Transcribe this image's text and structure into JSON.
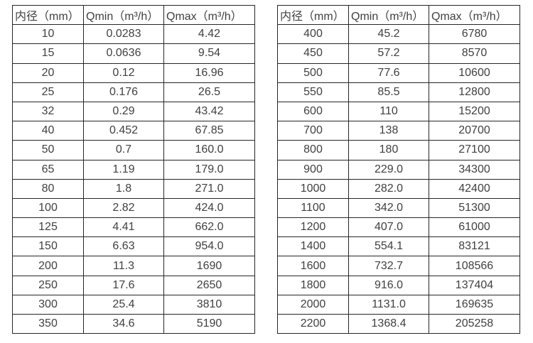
{
  "page": {
    "background_color": "#ffffff",
    "border_color": "#262626",
    "text_color": "#404040"
  },
  "tables": [
    {
      "headers": [
        "内径（mm）",
        "Qmin（m³/h）",
        "Qmax（m³/h）"
      ],
      "rows": [
        [
          "10",
          "0.0283",
          "4.42"
        ],
        [
          "15",
          "0.0636",
          "9.54"
        ],
        [
          "20",
          "0.12",
          "16.96"
        ],
        [
          "25",
          "0.176",
          "26.5"
        ],
        [
          "32",
          "0.29",
          "43.42"
        ],
        [
          "40",
          "0.452",
          "67.85"
        ],
        [
          "50",
          "0.7",
          "160.0"
        ],
        [
          "65",
          "1.19",
          "179.0"
        ],
        [
          "80",
          "1.8",
          "271.0"
        ],
        [
          "100",
          "2.82",
          "424.0"
        ],
        [
          "125",
          "4.41",
          "662.0"
        ],
        [
          "150",
          "6.63",
          "954.0"
        ],
        [
          "200",
          "11.3",
          "1690"
        ],
        [
          "250",
          "17.6",
          "2650"
        ],
        [
          "300",
          "25.4",
          "3810"
        ],
        [
          "350",
          "34.6",
          "5190"
        ]
      ]
    },
    {
      "headers": [
        "内径（mm）",
        "Qmin（m³/h）",
        "Qmax（m³/h）"
      ],
      "rows": [
        [
          "400",
          "45.2",
          "6780"
        ],
        [
          "450",
          "57.2",
          "8570"
        ],
        [
          "500",
          "77.6",
          "10600"
        ],
        [
          "550",
          "85.5",
          "12800"
        ],
        [
          "600",
          "110",
          "15200"
        ],
        [
          "700",
          "138",
          "20700"
        ],
        [
          "800",
          "180",
          "27100"
        ],
        [
          "900",
          "229.0",
          "34300"
        ],
        [
          "1000",
          "282.0",
          "42400"
        ],
        [
          "1100",
          "342.0",
          "51300"
        ],
        [
          "1200",
          "407.0",
          "61000"
        ],
        [
          "1400",
          "554.1",
          "83121"
        ],
        [
          "1600",
          "732.7",
          "108566"
        ],
        [
          "1800",
          "916.0",
          "137404"
        ],
        [
          "2000",
          "1131.0",
          "169635"
        ],
        [
          "2200",
          "1368.4",
          "205258"
        ]
      ]
    }
  ]
}
